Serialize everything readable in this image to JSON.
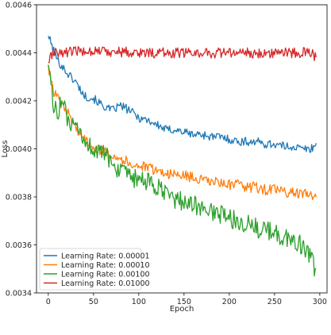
{
  "chart_data": {
    "type": "line",
    "title": "",
    "xlabel": "Epoch",
    "ylabel": "Loss",
    "xlim": [
      -13,
      308
    ],
    "ylim": [
      0.0034,
      0.0046
    ],
    "x_ticks": [
      0,
      50,
      100,
      150,
      200,
      250,
      300
    ],
    "y_ticks": [
      0.0034,
      0.0036,
      0.0038,
      0.004,
      0.0042,
      0.0044,
      0.0046
    ],
    "y_tick_labels": [
      "0.0034",
      "0.0036",
      "0.0038",
      "0.0040",
      "0.0042",
      "0.0044",
      "0.0046"
    ],
    "grid": false,
    "legend_position": "lower-left",
    "x_range": [
      0,
      296
    ],
    "series": [
      {
        "name": "Learning Rate: 0.00001",
        "color": "#1f77b4",
        "noise": 1.8e-05,
        "points": [
          [
            0,
            0.00447
          ],
          [
            5,
            0.00442
          ],
          [
            10,
            0.00437
          ],
          [
            20,
            0.00432
          ],
          [
            30,
            0.00428
          ],
          [
            40,
            0.00422
          ],
          [
            50,
            0.00421
          ],
          [
            60,
            0.00418
          ],
          [
            70,
            0.00416
          ],
          [
            80,
            0.00418
          ],
          [
            90,
            0.00416
          ],
          [
            100,
            0.00413
          ],
          [
            110,
            0.00412
          ],
          [
            120,
            0.0041
          ],
          [
            130,
            0.00408
          ],
          [
            140,
            0.00408
          ],
          [
            150,
            0.00407
          ],
          [
            160,
            0.00406
          ],
          [
            170,
            0.00406
          ],
          [
            180,
            0.00405
          ],
          [
            190,
            0.00405
          ],
          [
            200,
            0.00404
          ],
          [
            210,
            0.00403
          ],
          [
            220,
            0.00403
          ],
          [
            230,
            0.00403
          ],
          [
            240,
            0.00402
          ],
          [
            250,
            0.00402
          ],
          [
            260,
            0.00401
          ],
          [
            270,
            0.00401
          ],
          [
            280,
            0.004
          ],
          [
            290,
            0.004
          ],
          [
            296,
            0.00402
          ]
        ]
      },
      {
        "name": "Learning Rate: 0.00010",
        "color": "#ff7f0e",
        "noise": 2.2e-05,
        "points": [
          [
            0,
            0.00435
          ],
          [
            3,
            0.00428
          ],
          [
            6,
            0.00424
          ],
          [
            10,
            0.00421
          ],
          [
            15,
            0.00418
          ],
          [
            20,
            0.00416
          ],
          [
            25,
            0.00413
          ],
          [
            30,
            0.00409
          ],
          [
            40,
            0.00404
          ],
          [
            50,
            0.00401
          ],
          [
            60,
            0.00399
          ],
          [
            70,
            0.00398
          ],
          [
            80,
            0.00396
          ],
          [
            90,
            0.00394
          ],
          [
            100,
            0.00393
          ],
          [
            110,
            0.00392
          ],
          [
            120,
            0.00391
          ],
          [
            130,
            0.0039
          ],
          [
            140,
            0.00389
          ],
          [
            150,
            0.00389
          ],
          [
            160,
            0.00388
          ],
          [
            170,
            0.00387
          ],
          [
            180,
            0.00386
          ],
          [
            190,
            0.00386
          ],
          [
            200,
            0.00385
          ],
          [
            210,
            0.00385
          ],
          [
            220,
            0.00384
          ],
          [
            230,
            0.00384
          ],
          [
            240,
            0.00383
          ],
          [
            250,
            0.00383
          ],
          [
            260,
            0.00382
          ],
          [
            270,
            0.00382
          ],
          [
            280,
            0.00381
          ],
          [
            290,
            0.00381
          ],
          [
            296,
            0.00381
          ]
        ]
      },
      {
        "name": "Learning Rate: 0.00100",
        "color": "#2ca02c",
        "noise": 4e-05,
        "points": [
          [
            0,
            0.00435
          ],
          [
            3,
            0.00425
          ],
          [
            6,
            0.00418
          ],
          [
            10,
            0.00415
          ],
          [
            15,
            0.00421
          ],
          [
            20,
            0.00413
          ],
          [
            25,
            0.0041
          ],
          [
            30,
            0.00408
          ],
          [
            40,
            0.00403
          ],
          [
            50,
            0.004
          ],
          [
            60,
            0.00398
          ],
          [
            70,
            0.00395
          ],
          [
            80,
            0.0039
          ],
          [
            90,
            0.00388
          ],
          [
            100,
            0.00387
          ],
          [
            110,
            0.00386
          ],
          [
            120,
            0.00384
          ],
          [
            130,
            0.00381
          ],
          [
            140,
            0.00379
          ],
          [
            150,
            0.00378
          ],
          [
            160,
            0.00377
          ],
          [
            170,
            0.00375
          ],
          [
            180,
            0.00374
          ],
          [
            190,
            0.00373
          ],
          [
            200,
            0.00371
          ],
          [
            210,
            0.0037
          ],
          [
            220,
            0.00369
          ],
          [
            230,
            0.00367
          ],
          [
            240,
            0.00366
          ],
          [
            250,
            0.00365
          ],
          [
            260,
            0.00363
          ],
          [
            270,
            0.00362
          ],
          [
            280,
            0.0036
          ],
          [
            290,
            0.00355
          ],
          [
            296,
            0.00347
          ]
        ]
      },
      {
        "name": "Learning Rate: 0.01000",
        "color": "#d62728",
        "noise": 2.2e-05,
        "points": [
          [
            0,
            0.00436
          ],
          [
            5,
            0.0044
          ],
          [
            10,
            0.0044
          ],
          [
            50,
            0.00441
          ],
          [
            100,
            0.0044
          ],
          [
            150,
            0.0044
          ],
          [
            200,
            0.0044
          ],
          [
            250,
            0.0044
          ],
          [
            290,
            0.0044
          ],
          [
            296,
            0.00438
          ]
        ]
      }
    ]
  }
}
